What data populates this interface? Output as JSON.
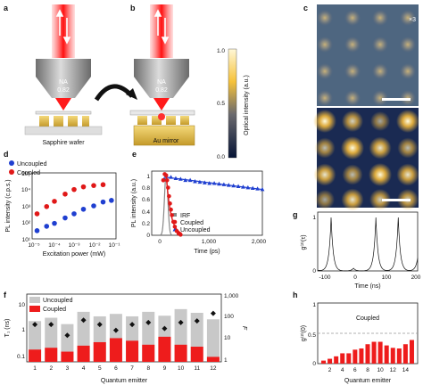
{
  "panels": {
    "a": {
      "label": "a",
      "objective_text": [
        "NA",
        "0.82"
      ],
      "substrate_label": "Sapphire wafer"
    },
    "b": {
      "label": "b",
      "objective_text": [
        "NA",
        "0.82"
      ],
      "substrate_label": "Au mirror"
    },
    "c": {
      "label": "c",
      "multiplier": "×3",
      "colorbar_label": "Optical intensity (a.u.)",
      "colorbar_ticks": [
        "1.0",
        "0.5",
        "0.0"
      ]
    },
    "d": {
      "label": "d",
      "xlabel": "Excitation power (mW)",
      "ylabel": "PL intensity (c.p.s.)",
      "x_ticks": [
        "10⁻⁵",
        "10⁻⁴",
        "10⁻³",
        "10⁻²",
        "10⁻¹"
      ],
      "y_ticks": [
        "10⁵",
        "10⁴",
        "10³",
        "10²",
        "10¹"
      ],
      "legend": [
        "Uncoupled",
        "Coupled"
      ]
    },
    "e": {
      "label": "e",
      "xlabel": "Time (ps)",
      "ylabel": "PL intensity (a.u.)",
      "x_ticks": [
        "0",
        "1,000",
        "2,000"
      ],
      "y_ticks": [
        "1",
        "0.8",
        "0.6",
        "0.4",
        "0.2",
        "0"
      ],
      "legend": [
        "IRF",
        "Coupled",
        "Uncoupled"
      ]
    },
    "f": {
      "label": "f",
      "xlabel": "Quantum emitter",
      "ylabel": "T₁ (ns)",
      "y2label": "F",
      "x_ticks": [
        "1",
        "2",
        "3",
        "4",
        "5",
        "6",
        "7",
        "8",
        "9",
        "10",
        "11",
        "12"
      ],
      "y_ticks": [
        "10",
        "1",
        "0.1"
      ],
      "y2_ticks": [
        "1,000",
        "100",
        "10",
        "1"
      ],
      "legend": [
        "Uncoupled",
        "Coupled"
      ]
    },
    "g": {
      "label": "g",
      "xlabel": "Time (ns)",
      "ylabel": "g⁽²⁾(τ)",
      "x_ticks": [
        "-100",
        "0",
        "100",
        "200"
      ],
      "y_ticks": [
        "1",
        "0"
      ]
    },
    "h": {
      "label": "h",
      "xlabel": "Quantum emitter",
      "ylabel": "g⁽²⁾(0)",
      "annotation": "Coupled",
      "x_ticks": [
        "2",
        "4",
        "6",
        "8",
        "10",
        "12",
        "14"
      ],
      "y_ticks": [
        "1",
        "0.5",
        "0"
      ]
    }
  },
  "colors": {
    "uncoupled": "#1f3fd0",
    "coupled": "#e01818",
    "bar_uncoupled": "#c8c8c8",
    "bar_coupled": "#ee1c1c",
    "laser": "#ff2a2a"
  },
  "chart_data": [
    {
      "panel": "d",
      "type": "scatter",
      "xlabel": "Excitation power (mW)",
      "ylabel": "PL intensity (c.p.s.)",
      "xscale": "log",
      "yscale": "log",
      "xlim": [
        1e-05,
        0.1
      ],
      "ylim": [
        10,
        100000
      ],
      "series": [
        {
          "name": "Uncoupled",
          "x": [
            1.3e-05,
            4e-05,
            0.0001,
            0.00035,
            0.001,
            0.003,
            0.01,
            0.03,
            0.08
          ],
          "values": [
            23,
            45,
            70,
            160,
            300,
            600,
            1000,
            1800,
            2300
          ]
        },
        {
          "name": "Coupled",
          "x": [
            1.3e-05,
            4e-05,
            0.0001,
            0.00035,
            0.001,
            0.003,
            0.01,
            0.03
          ],
          "values": [
            300,
            900,
            2000,
            6000,
            12000,
            18000,
            22000,
            25000
          ]
        }
      ]
    },
    {
      "panel": "e",
      "type": "scatter",
      "xlabel": "Time (ps)",
      "ylabel": "PL intensity (a.u.)",
      "xlim": [
        -300,
        2000
      ],
      "ylim": [
        0,
        1.05
      ],
      "series": [
        {
          "name": "Coupled",
          "x": [
            -60,
            -30,
            0,
            20,
            40,
            60,
            80,
            100,
            120,
            150,
            180,
            220,
            260,
            300
          ],
          "values": [
            0.9,
            1.0,
            0.98,
            0.9,
            0.78,
            0.64,
            0.52,
            0.42,
            0.33,
            0.22,
            0.14,
            0.07,
            0.03,
            0.01
          ]
        },
        {
          "name": "Uncoupled",
          "x": [
            -40,
            0,
            100,
            200,
            300,
            400,
            500,
            600,
            700,
            800,
            900,
            1000,
            1100,
            1200,
            1300,
            1400,
            1500,
            1600,
            1700,
            1800,
            1900,
            2000
          ],
          "values": [
            0.92,
            0.97,
            0.95,
            0.93,
            0.92,
            0.9,
            0.9,
            0.88,
            0.87,
            0.86,
            0.85,
            0.85,
            0.84,
            0.83,
            0.82,
            0.81,
            0.8,
            0.79,
            0.78,
            0.77,
            0.76,
            0.75
          ]
        }
      ]
    },
    {
      "panel": "f",
      "type": "bar",
      "xlabel": "Quantum emitter",
      "ylabel": "T₁ (ns)",
      "yscale": "log",
      "ylim": [
        0.1,
        10
      ],
      "categories": [
        "1",
        "2",
        "3",
        "4",
        "5",
        "6",
        "7",
        "8",
        "9",
        "10",
        "11",
        "12"
      ],
      "series": [
        {
          "name": "Uncoupled",
          "values": [
            1.6,
            2.0,
            1.3,
            3.0,
            2.2,
            2.6,
            2.2,
            3.0,
            2.3,
            3.6,
            2.8,
            1.8
          ]
        },
        {
          "name": "Coupled",
          "values": [
            0.23,
            0.26,
            0.2,
            0.3,
            0.38,
            0.5,
            0.42,
            0.32,
            0.55,
            0.32,
            0.28,
            0.14
          ]
        }
      ],
      "F": [
        45,
        45,
        15,
        70,
        45,
        25,
        45,
        55,
        30,
        55,
        65,
        140
      ]
    },
    {
      "panel": "h",
      "type": "bar",
      "xlabel": "Quantum emitter",
      "ylabel": "g⁽²⁾(0)",
      "ylim": [
        0,
        1
      ],
      "categories": [
        "1",
        "2",
        "3",
        "4",
        "5",
        "6",
        "7",
        "8",
        "9",
        "10",
        "11",
        "12",
        "13",
        "14",
        "15"
      ],
      "values": [
        0.05,
        0.08,
        0.12,
        0.17,
        0.17,
        0.23,
        0.25,
        0.32,
        0.36,
        0.36,
        0.3,
        0.26,
        0.25,
        0.32,
        0.39
      ]
    }
  ]
}
